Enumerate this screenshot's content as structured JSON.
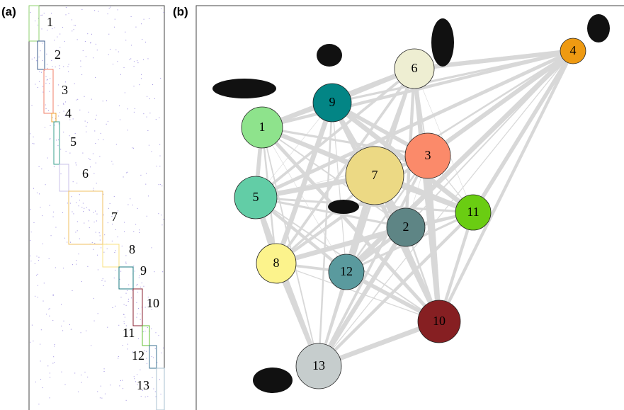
{
  "panels": {
    "a": {
      "label": "(a)",
      "blocks": [
        {
          "label": "1",
          "color": "#8fd16f"
        },
        {
          "label": "2",
          "color": "#3b5e8c"
        },
        {
          "label": "3",
          "color": "#f07f6a"
        },
        {
          "label": "4",
          "color": "#f0a030"
        },
        {
          "label": "5",
          "color": "#3aa08c"
        },
        {
          "label": "6",
          "color": "#c8c0e8"
        },
        {
          "label": "7",
          "color": "#f0c060"
        },
        {
          "label": "8",
          "color": "#f8e080"
        },
        {
          "label": "9",
          "color": "#1a7a80"
        },
        {
          "label": "10",
          "color": "#8a2030"
        },
        {
          "label": "11",
          "color": "#60c030"
        },
        {
          "label": "12",
          "color": "#3a7090"
        },
        {
          "label": "13",
          "color": "#a8c0d0"
        }
      ]
    },
    "b": {
      "label": "(b)",
      "nodes": [
        {
          "label": "1",
          "color": "#8ee38c"
        },
        {
          "label": "2",
          "color": "#5e8585"
        },
        {
          "label": "3",
          "color": "#fb8a6a"
        },
        {
          "label": "4",
          "color": "#ee9a12"
        },
        {
          "label": "5",
          "color": "#62cda6"
        },
        {
          "label": "6",
          "color": "#eeeed2"
        },
        {
          "label": "7",
          "color": "#ecd984"
        },
        {
          "label": "8",
          "color": "#fcf38c"
        },
        {
          "label": "9",
          "color": "#038585"
        },
        {
          "label": "10",
          "color": "#861f22"
        },
        {
          "label": "11",
          "color": "#6acd12"
        },
        {
          "label": "12",
          "color": "#5a9a9e"
        },
        {
          "label": "13",
          "color": "#c6cdcd"
        }
      ]
    }
  }
}
